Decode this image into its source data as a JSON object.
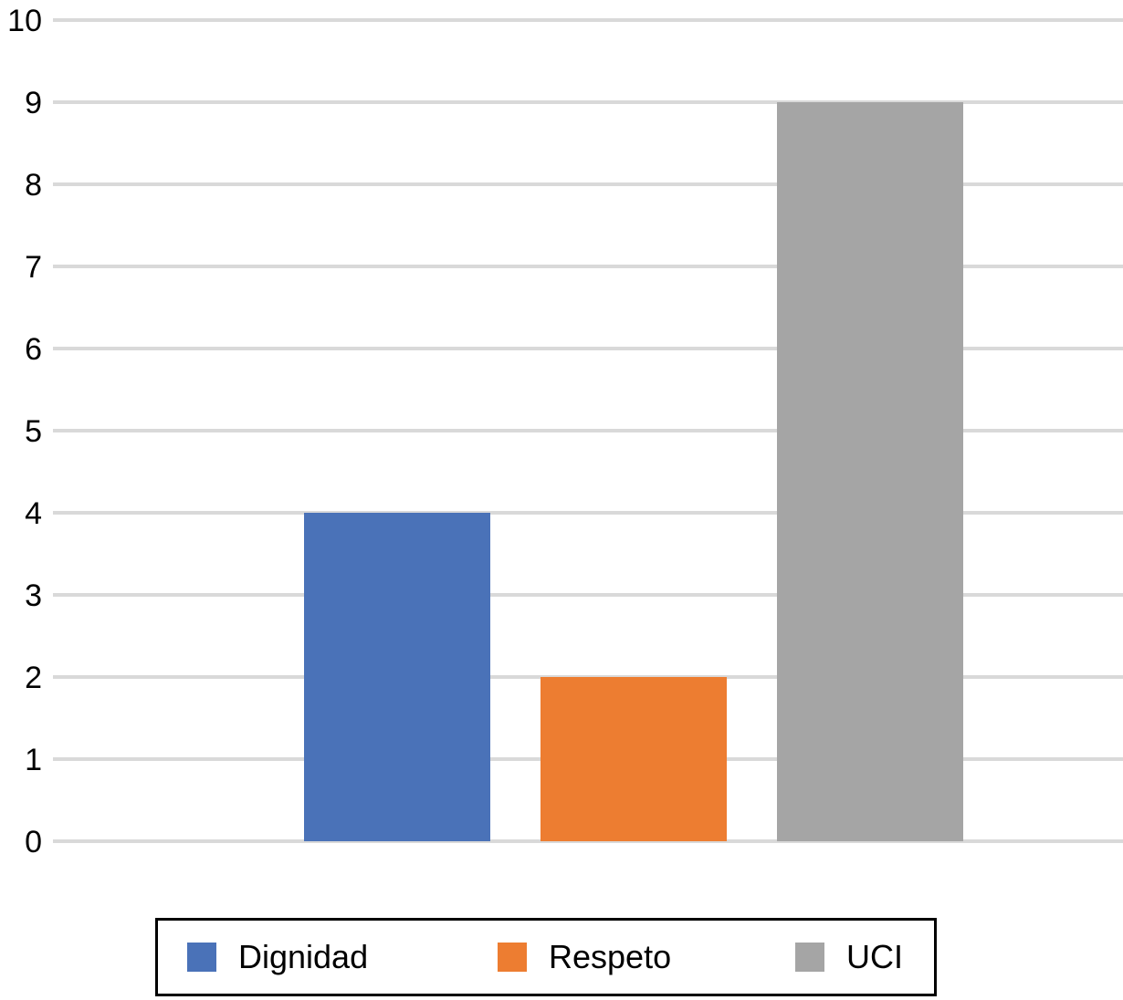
{
  "chart_data": {
    "type": "bar",
    "title": "",
    "xlabel": "",
    "ylabel": "",
    "ylim": [
      0,
      10
    ],
    "yticks": [
      "0",
      "1",
      "2",
      "3",
      "4",
      "5",
      "6",
      "7",
      "8",
      "9",
      "10"
    ],
    "grid": true,
    "legend_position": "bottom",
    "series": [
      {
        "name": "Dignidad",
        "values": [
          4
        ],
        "color": "#4a72b8"
      },
      {
        "name": "Respeto",
        "values": [
          2
        ],
        "color": "#ed7d31"
      },
      {
        "name": "UCI",
        "values": [
          9
        ],
        "color": "#a5a5a5"
      }
    ],
    "gridline_color": "#d9d9d9"
  }
}
